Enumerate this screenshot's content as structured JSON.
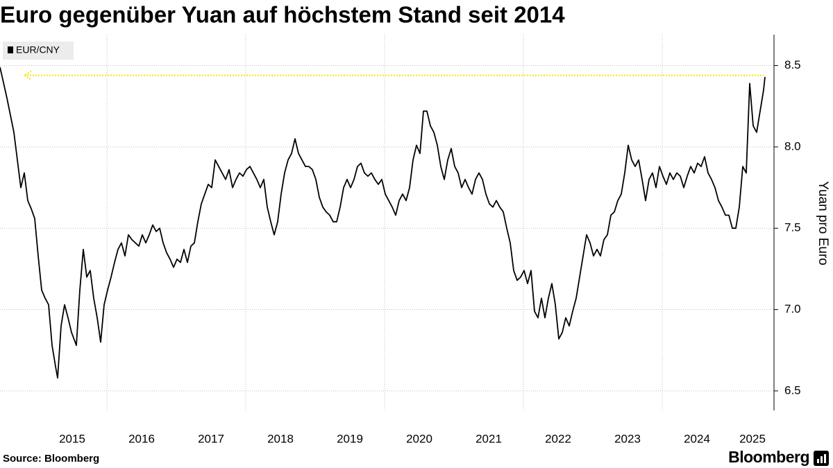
{
  "chart_data": {
    "type": "line",
    "title": "Euro gegenüber Yuan auf höchstem Stand seit 2014",
    "ylabel": "Yuan pro Euro",
    "source": "Source: Bloomberg",
    "brand": "Bloomberg",
    "series": [
      {
        "name": "EUR/CNY",
        "color": "#000000",
        "x": [
          2014.46,
          2014.56,
          2014.66,
          2014.71,
          2014.76,
          2014.81,
          2014.86,
          2014.91,
          2014.96,
          2015.01,
          2015.06,
          2015.11,
          2015.16,
          2015.21,
          2015.26,
          2015.29,
          2015.34,
          2015.39,
          2015.44,
          2015.49,
          2015.56,
          2015.61,
          2015.66,
          2015.71,
          2015.76,
          2015.81,
          2015.86,
          2015.91,
          2015.96,
          2016.01,
          2016.06,
          2016.11,
          2016.16,
          2016.21,
          2016.26,
          2016.31,
          2016.36,
          2016.41,
          2016.46,
          2016.51,
          2016.56,
          2016.61,
          2016.66,
          2016.71,
          2016.76,
          2016.81,
          2016.86,
          2016.91,
          2016.96,
          2017.01,
          2017.06,
          2017.11,
          2017.16,
          2017.21,
          2017.26,
          2017.31,
          2017.36,
          2017.41,
          2017.46,
          2017.51,
          2017.56,
          2017.61,
          2017.66,
          2017.71,
          2017.76,
          2017.81,
          2017.86,
          2017.91,
          2017.96,
          2018.01,
          2018.06,
          2018.11,
          2018.16,
          2018.21,
          2018.26,
          2018.31,
          2018.36,
          2018.41,
          2018.46,
          2018.51,
          2018.56,
          2018.61,
          2018.66,
          2018.71,
          2018.76,
          2018.81,
          2018.86,
          2018.91,
          2018.96,
          2019.01,
          2019.06,
          2019.11,
          2019.16,
          2019.21,
          2019.26,
          2019.31,
          2019.36,
          2019.41,
          2019.46,
          2019.51,
          2019.56,
          2019.61,
          2019.66,
          2019.71,
          2019.76,
          2019.81,
          2019.86,
          2019.91,
          2019.96,
          2020.01,
          2020.06,
          2020.11,
          2020.16,
          2020.21,
          2020.26,
          2020.31,
          2020.36,
          2020.41,
          2020.46,
          2020.51,
          2020.56,
          2020.61,
          2020.66,
          2020.71,
          2020.76,
          2020.81,
          2020.86,
          2020.91,
          2020.96,
          2021.01,
          2021.06,
          2021.11,
          2021.16,
          2021.21,
          2021.26,
          2021.31,
          2021.36,
          2021.41,
          2021.46,
          2021.51,
          2021.56,
          2021.61,
          2021.66,
          2021.71,
          2021.76,
          2021.81,
          2021.86,
          2021.91,
          2021.96,
          2022.01,
          2022.06,
          2022.11,
          2022.16,
          2022.21,
          2022.26,
          2022.31,
          2022.36,
          2022.41,
          2022.46,
          2022.51,
          2022.56,
          2022.61,
          2022.66,
          2022.71,
          2022.76,
          2022.81,
          2022.86,
          2022.91,
          2022.96,
          2023.01,
          2023.06,
          2023.11,
          2023.16,
          2023.21,
          2023.26,
          2023.31,
          2023.36,
          2023.41,
          2023.46,
          2023.51,
          2023.56,
          2023.61,
          2023.66,
          2023.71,
          2023.76,
          2023.81,
          2023.86,
          2023.91,
          2023.96,
          2024.01,
          2024.06,
          2024.11,
          2024.16,
          2024.21,
          2024.26,
          2024.31,
          2024.36,
          2024.41,
          2024.46,
          2024.51,
          2024.56,
          2024.61,
          2024.66,
          2024.71,
          2024.76,
          2024.81,
          2024.86,
          2024.91,
          2024.96,
          2025.01,
          2025.06,
          2025.11,
          2025.16,
          2025.21,
          2025.26,
          2025.31,
          2025.36,
          2025.41,
          2025.46,
          2025.48
        ],
        "values": [
          8.49,
          8.3,
          8.09,
          7.92,
          7.75,
          7.84,
          7.67,
          7.62,
          7.56,
          7.33,
          7.12,
          7.07,
          7.03,
          6.78,
          6.65,
          6.58,
          6.9,
          7.03,
          6.95,
          6.86,
          6.78,
          7.12,
          7.37,
          7.2,
          7.24,
          7.07,
          6.95,
          6.8,
          7.03,
          7.12,
          7.2,
          7.29,
          7.37,
          7.41,
          7.33,
          7.46,
          7.43,
          7.41,
          7.39,
          7.46,
          7.41,
          7.46,
          7.52,
          7.48,
          7.5,
          7.41,
          7.35,
          7.31,
          7.26,
          7.31,
          7.29,
          7.37,
          7.29,
          7.39,
          7.41,
          7.54,
          7.65,
          7.71,
          7.77,
          7.75,
          7.92,
          7.88,
          7.84,
          7.8,
          7.86,
          7.75,
          7.8,
          7.84,
          7.82,
          7.86,
          7.88,
          7.84,
          7.8,
          7.75,
          7.8,
          7.63,
          7.54,
          7.46,
          7.54,
          7.71,
          7.84,
          7.92,
          7.96,
          8.05,
          7.96,
          7.92,
          7.88,
          7.88,
          7.86,
          7.8,
          7.69,
          7.63,
          7.6,
          7.58,
          7.54,
          7.54,
          7.63,
          7.75,
          7.8,
          7.75,
          7.8,
          7.88,
          7.9,
          7.84,
          7.82,
          7.84,
          7.8,
          7.77,
          7.8,
          7.71,
          7.67,
          7.63,
          7.58,
          7.67,
          7.71,
          7.67,
          7.75,
          7.92,
          8.01,
          7.96,
          8.22,
          8.22,
          8.13,
          8.09,
          8.01,
          7.88,
          7.8,
          7.92,
          7.99,
          7.88,
          7.84,
          7.75,
          7.8,
          7.75,
          7.71,
          7.8,
          7.84,
          7.8,
          7.71,
          7.65,
          7.63,
          7.67,
          7.63,
          7.6,
          7.5,
          7.41,
          7.24,
          7.18,
          7.2,
          7.24,
          7.16,
          7.24,
          6.99,
          6.95,
          7.07,
          6.95,
          7.07,
          7.16,
          7.03,
          6.82,
          6.86,
          6.95,
          6.9,
          6.99,
          7.07,
          7.2,
          7.33,
          7.46,
          7.41,
          7.33,
          7.37,
          7.33,
          7.43,
          7.46,
          7.58,
          7.6,
          7.67,
          7.71,
          7.84,
          8.01,
          7.92,
          7.88,
          7.92,
          7.8,
          7.67,
          7.8,
          7.84,
          7.75,
          7.88,
          7.82,
          7.77,
          7.84,
          7.8,
          7.84,
          7.82,
          7.75,
          7.82,
          7.88,
          7.84,
          7.9,
          7.88,
          7.94,
          7.84,
          7.8,
          7.75,
          7.67,
          7.63,
          7.58,
          7.58,
          7.5,
          7.5,
          7.63,
          7.88,
          7.84,
          8.39,
          8.13,
          8.09,
          8.22,
          8.35,
          8.43
        ]
      }
    ],
    "reference_line": {
      "value": 8.44,
      "x": [
        2014.81,
        2025.46
      ],
      "color": "#f5e400"
    },
    "xlim": [
      2014.46,
      2025.61
    ],
    "xticks": [
      {
        "value": 2015.5,
        "label": "2015"
      },
      {
        "value": 2016.5,
        "label": "2016"
      },
      {
        "value": 2017.5,
        "label": "2017"
      },
      {
        "value": 2018.5,
        "label": "2018"
      },
      {
        "value": 2019.5,
        "label": "2019"
      },
      {
        "value": 2020.5,
        "label": "2020"
      },
      {
        "value": 2021.5,
        "label": "2021"
      },
      {
        "value": 2022.5,
        "label": "2022"
      },
      {
        "value": 2023.5,
        "label": "2023"
      },
      {
        "value": 2024.5,
        "label": "2024"
      },
      {
        "value": 2025.3,
        "label": "2025"
      }
    ],
    "xgrid": [
      2016,
      2018,
      2020,
      2022,
      2024
    ],
    "ylim": [
      6.38,
      8.69
    ],
    "yticks": [
      6.5,
      {
        "value": 7,
        "label": "7.0"
      },
      7.5,
      {
        "value": 8,
        "label": "8.0"
      },
      8.5
    ],
    "grid": true
  }
}
